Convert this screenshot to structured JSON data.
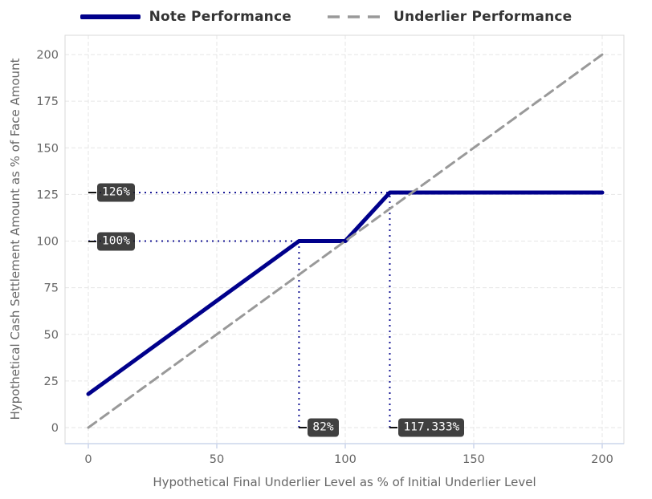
{
  "chart_data": {
    "type": "line",
    "title": "",
    "xlabel": "Hypothetical Final Underlier Level as % of Initial Underlier Level",
    "ylabel": "Hypothetical Cash Settlement Amount as % of Face Amount",
    "x_ticks": [
      0,
      50,
      100,
      150,
      200
    ],
    "y_ticks": [
      0,
      25,
      50,
      75,
      100,
      125,
      150,
      175,
      200
    ],
    "xlim": [
      0,
      200
    ],
    "ylim": [
      0,
      200
    ],
    "grid": true,
    "legend_position": "top",
    "series": [
      {
        "name": "Note Performance",
        "color": "#00008b",
        "line_style": "solid",
        "width": 5,
        "points": [
          [
            0,
            18
          ],
          [
            82,
            100
          ],
          [
            100,
            100
          ],
          [
            117.333,
            126
          ],
          [
            200,
            126
          ]
        ]
      },
      {
        "name": "Underlier Performance",
        "color": "#999999",
        "line_style": "dashed",
        "width": 3,
        "points": [
          [
            0,
            0
          ],
          [
            200,
            200
          ]
        ]
      }
    ],
    "guides": [
      {
        "orient": "h",
        "at": 126,
        "from": 0,
        "to": 117.333
      },
      {
        "orient": "h",
        "at": 100,
        "from": 0,
        "to": 82
      },
      {
        "orient": "v",
        "at": 82,
        "from": 0,
        "to": 100
      },
      {
        "orient": "v",
        "at": 117.333,
        "from": 0,
        "to": 126
      }
    ],
    "guide_color": "#00008b",
    "annotations": [
      {
        "label": "126%",
        "x": 0,
        "y": 126
      },
      {
        "label": "100%",
        "x": 0,
        "y": 100
      },
      {
        "label": "82%",
        "x": 82,
        "y": 0
      },
      {
        "label": "117.333%",
        "x": 117.333,
        "y": 0
      }
    ],
    "colors": {
      "annotation_bg": "rgba(30,30,30,0.85)",
      "annotation_text": "#ffffff",
      "annotation_leader": "#111111",
      "axis_text": "#666666",
      "legend_text": "#333333"
    }
  }
}
